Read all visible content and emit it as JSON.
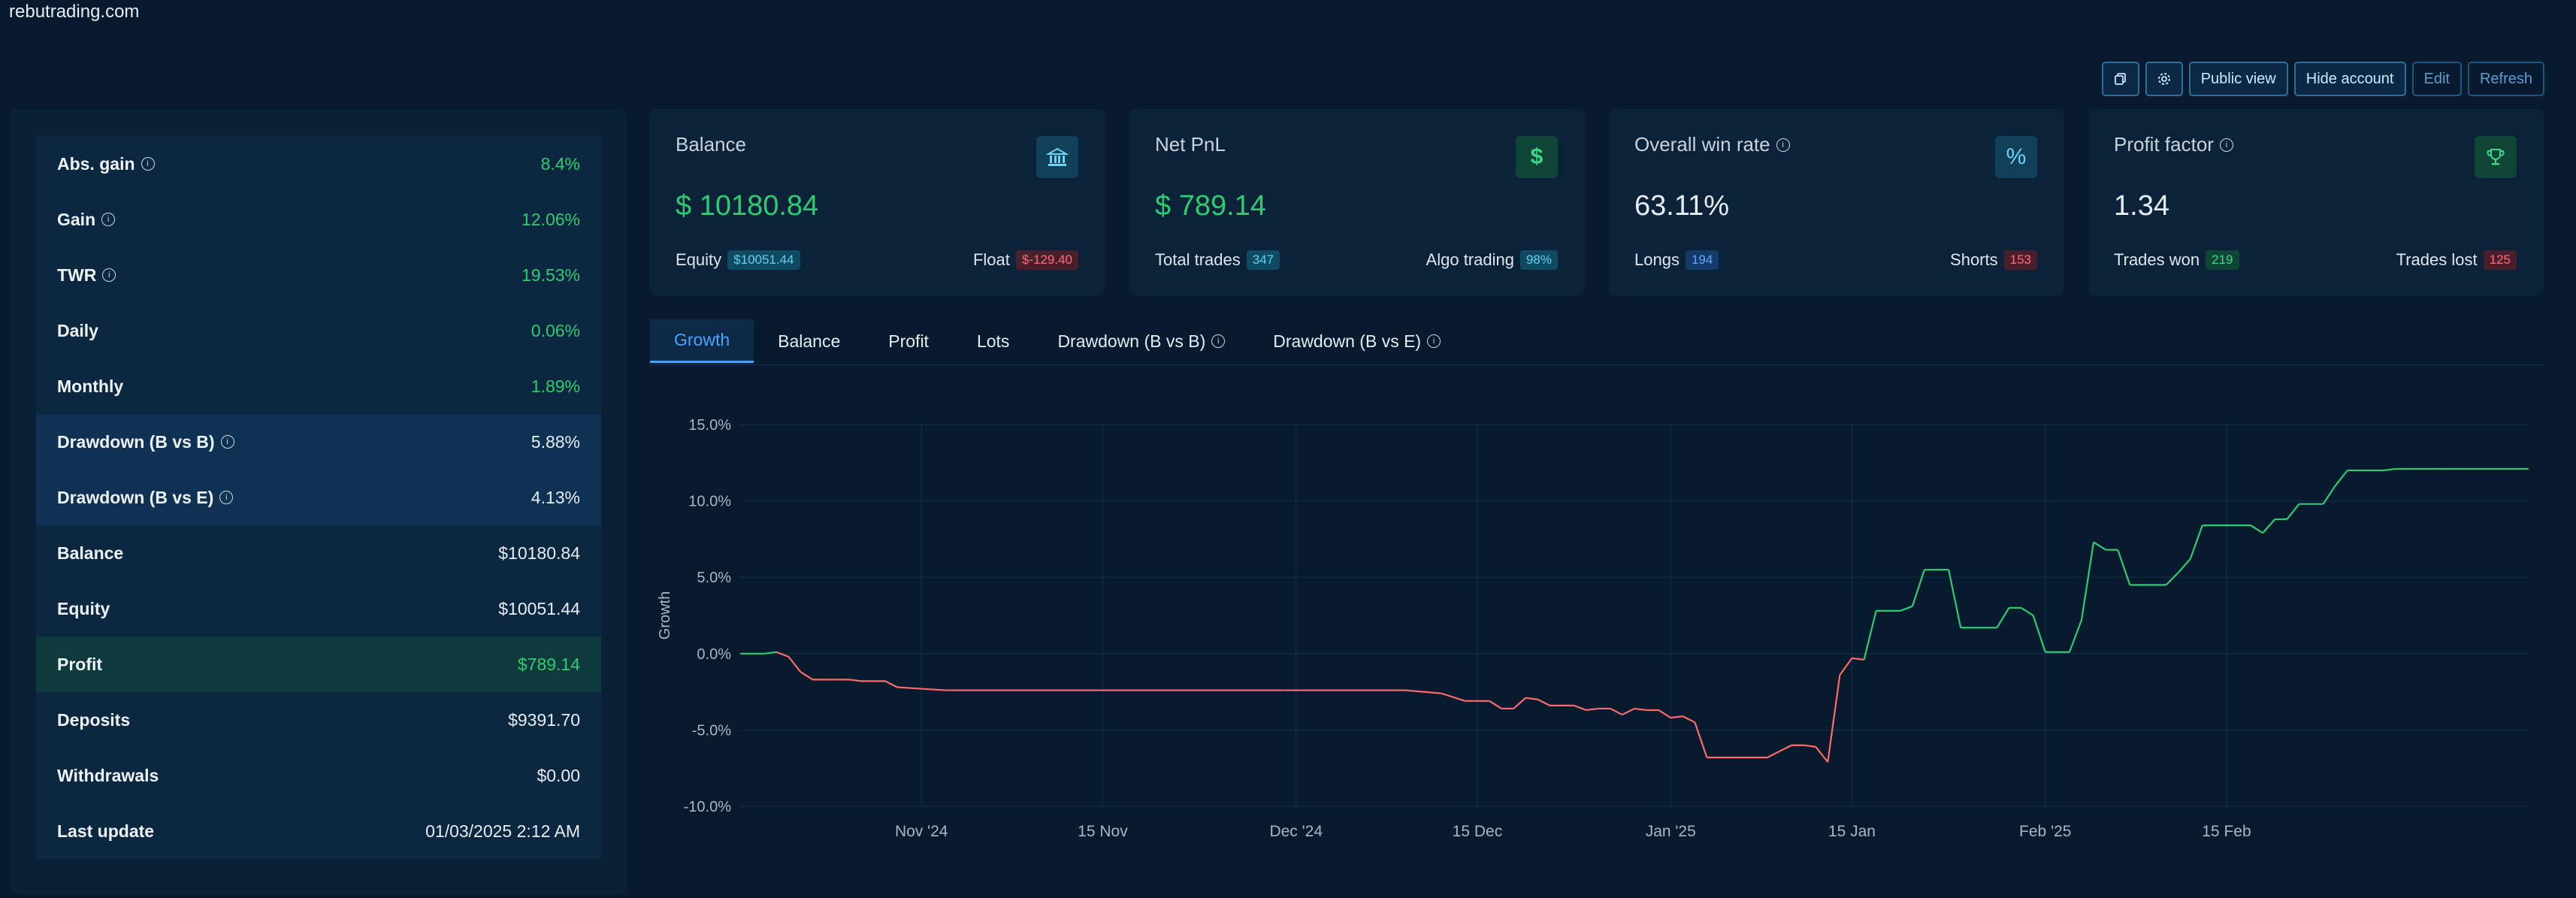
{
  "site": {
    "title": "rebutrading.com"
  },
  "toolbar": {
    "copy_icon": "copy-icon",
    "settings_icon": "gear-icon",
    "public_view": "Public view",
    "hide_account": "Hide account",
    "edit": "Edit",
    "refresh": "Refresh"
  },
  "stats": [
    {
      "label": "Abs. gain",
      "value": "8.4%",
      "info": true,
      "green": true
    },
    {
      "label": "Gain",
      "value": "12.06%",
      "info": true,
      "green": true
    },
    {
      "label": "TWR",
      "value": "19.53%",
      "info": true,
      "green": true
    },
    {
      "label": "Daily",
      "value": "0.06%",
      "info": false,
      "green": true
    },
    {
      "label": "Monthly",
      "value": "1.89%",
      "info": false,
      "green": true
    },
    {
      "label": "Drawdown (B vs B)",
      "value": "5.88%",
      "info": true,
      "green": false
    },
    {
      "label": "Drawdown (B vs E)",
      "value": "4.13%",
      "info": true,
      "green": false
    },
    {
      "label": "Balance",
      "value": "$10180.84",
      "info": false,
      "green": false
    },
    {
      "label": "Equity",
      "value": "$10051.44",
      "info": false,
      "green": false
    },
    {
      "label": "Profit",
      "value": "$789.14",
      "info": false,
      "green": true
    },
    {
      "label": "Deposits",
      "value": "$9391.70",
      "info": false,
      "green": false
    },
    {
      "label": "Withdrawals",
      "value": "$0.00",
      "info": false,
      "green": false
    },
    {
      "label": "Last update",
      "value": "01/03/2025 2:12 AM",
      "info": false,
      "green": false
    }
  ],
  "cards": {
    "balance": {
      "title": "Balance",
      "value": "$ 10180.84",
      "icon": "bank-icon",
      "left_label": "Equity",
      "left_badge": "$10051.44",
      "right_label": "Float",
      "right_badge": "$-129.40"
    },
    "netpnl": {
      "title": "Net PnL",
      "value": "$ 789.14",
      "icon": "dollar-icon",
      "left_label": "Total trades",
      "left_badge": "347",
      "right_label": "Algo trading",
      "right_badge": "98%"
    },
    "winrate": {
      "title": "Overall win rate",
      "value": "63.11%",
      "icon": "percent-icon",
      "left_label": "Longs",
      "left_badge": "194",
      "right_label": "Shorts",
      "right_badge": "153"
    },
    "profitfactor": {
      "title": "Profit factor",
      "value": "1.34",
      "icon": "trophy-icon",
      "left_label": "Trades won",
      "left_badge": "219",
      "right_label": "Trades lost",
      "right_badge": "125"
    }
  },
  "tabs": [
    "Growth",
    "Balance",
    "Profit",
    "Lots",
    "Drawdown (B vs B)",
    "Drawdown (B vs E)"
  ],
  "colors": {
    "positive": "#2ecc71",
    "negative": "#ff6b6b",
    "accent": "#4aa3ff"
  },
  "chart_data": {
    "type": "line",
    "ylabel": "Growth",
    "ylim": [
      -10,
      15
    ],
    "yticks": [
      "15.0%",
      "10.0%",
      "5.0%",
      "0.0%",
      "-5.0%",
      "-10.0%"
    ],
    "xticks": [
      "Nov '24",
      "15 Nov",
      "Dec '24",
      "15 Dec",
      "Jan '25",
      "15 Jan",
      "Feb '25",
      "15 Feb"
    ],
    "x_range_days": [
      0,
      148
    ],
    "xtick_days": [
      15,
      30,
      46,
      61,
      77,
      92,
      108,
      123
    ],
    "x": [
      0,
      2,
      3,
      4,
      5,
      6,
      7,
      8,
      9,
      10,
      12,
      13,
      15,
      17,
      30,
      45,
      55,
      58,
      60,
      61,
      62,
      63,
      64,
      65,
      66,
      67,
      68,
      69,
      70,
      71,
      72,
      73,
      74,
      75,
      76,
      77,
      78,
      79,
      80,
      81,
      82,
      83,
      84,
      85,
      86,
      87,
      88,
      89,
      90,
      91,
      92,
      93,
      94,
      95,
      96,
      97,
      98,
      99,
      100,
      101,
      102,
      103,
      104,
      105,
      106,
      107,
      108,
      109,
      110,
      111,
      112,
      113,
      114,
      115,
      116,
      117,
      118,
      119,
      120,
      121,
      122,
      123,
      124,
      125,
      126,
      127,
      128,
      129,
      130,
      131,
      132,
      133,
      134,
      135,
      136,
      137,
      138,
      139,
      140,
      141,
      142,
      143,
      144,
      145,
      146,
      147,
      148
    ],
    "values": [
      0,
      0,
      0.1,
      -0.2,
      -1.2,
      -1.7,
      -1.7,
      -1.7,
      -1.7,
      -1.8,
      -1.8,
      -2.2,
      -2.3,
      -2.4,
      -2.4,
      -2.4,
      -2.4,
      -2.6,
      -3.1,
      -3.1,
      -3.1,
      -3.6,
      -3.6,
      -2.9,
      -3.0,
      -3.4,
      -3.4,
      -3.4,
      -3.7,
      -3.6,
      -3.6,
      -4.0,
      -3.6,
      -3.7,
      -3.7,
      -4.2,
      -4.1,
      -4.5,
      -6.8,
      -6.8,
      -6.8,
      -6.8,
      -6.8,
      -6.8,
      -6.4,
      -6.0,
      -6.0,
      -6.1,
      -7.1,
      -1.4,
      -0.3,
      -0.4,
      2.8,
      2.8,
      2.8,
      3.1,
      5.5,
      5.5,
      5.5,
      1.7,
      1.7,
      1.7,
      1.7,
      3.0,
      3.0,
      2.5,
      0.1,
      0.1,
      0.1,
      2.2,
      7.3,
      6.8,
      6.8,
      4.5,
      4.5,
      4.5,
      4.5,
      5.3,
      6.2,
      8.4,
      8.4,
      8.4,
      8.4,
      8.4,
      7.9,
      8.8,
      8.8,
      9.8,
      9.8,
      9.8,
      11.0,
      12.0,
      12.0,
      12.0,
      12.0,
      12.1,
      12.1,
      12.1,
      12.1,
      12.1,
      12.1,
      12.1,
      12.1,
      12.1,
      12.1,
      12.1,
      12.1
    ]
  }
}
